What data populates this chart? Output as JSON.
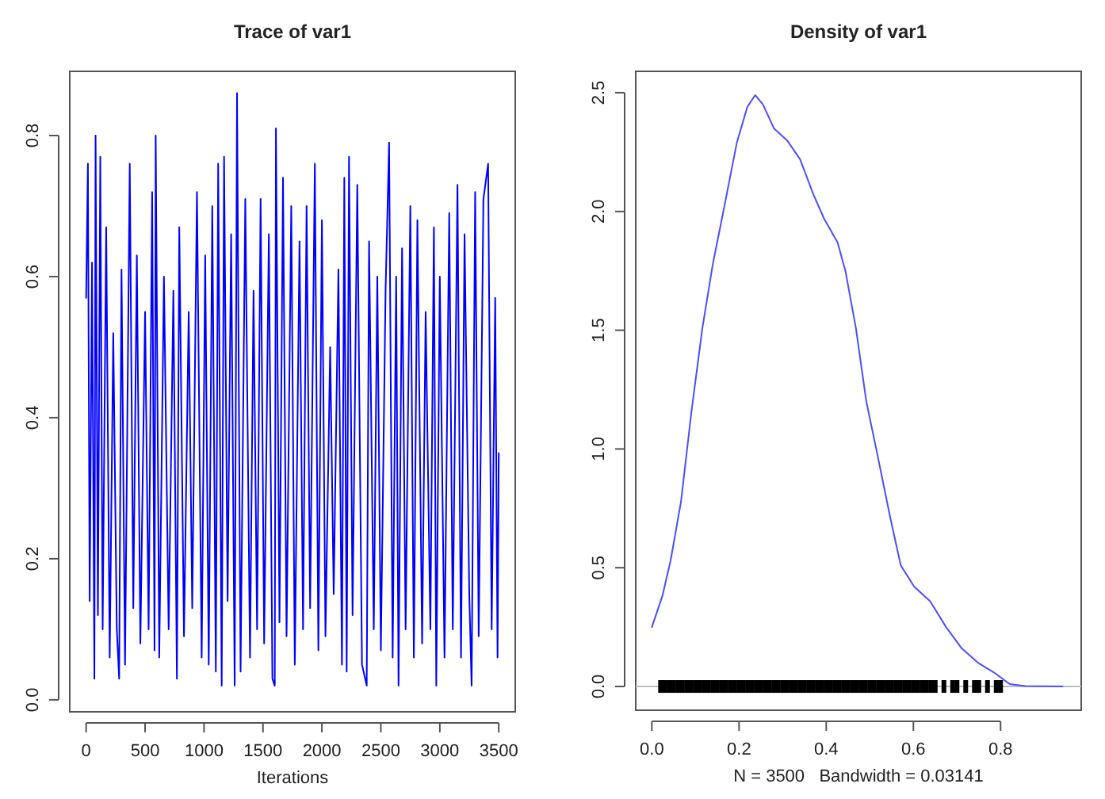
{
  "chart_data": [
    {
      "type": "line",
      "title": "Trace of var1",
      "xlabel": "Iterations",
      "xlim": [
        -139,
        3640
      ],
      "xticks": [
        0,
        500,
        1000,
        1500,
        2000,
        2500,
        3000,
        3500
      ],
      "ylim": [
        -0.017,
        0.891
      ],
      "yticks": [
        {
          "value": 0,
          "label": "0.0"
        },
        0.2,
        0.4,
        0.6,
        0.8
      ],
      "series": [
        {
          "color": "#0000ff",
          "x": [
            0,
            15,
            30,
            50,
            70,
            80,
            100,
            120,
            140,
            170,
            200,
            230,
            260,
            280,
            300,
            330,
            370,
            400,
            430,
            460,
            500,
            530,
            560,
            580,
            590,
            620,
            660,
            700,
            740,
            770,
            790,
            830,
            870,
            900,
            940,
            980,
            1010,
            1040,
            1070,
            1100,
            1120,
            1150,
            1170,
            1200,
            1230,
            1260,
            1280,
            1310,
            1350,
            1390,
            1420,
            1450,
            1480,
            1510,
            1550,
            1580,
            1600,
            1610,
            1640,
            1670,
            1700,
            1740,
            1770,
            1810,
            1840,
            1870,
            1900,
            1940,
            1970,
            2000,
            2030,
            2070,
            2100,
            2140,
            2170,
            2190,
            2210,
            2230,
            2260,
            2300,
            2340,
            2380,
            2400,
            2440,
            2470,
            2500,
            2540,
            2570,
            2600,
            2630,
            2650,
            2680,
            2710,
            2750,
            2780,
            2810,
            2850,
            2880,
            2920,
            2950,
            2970,
            3000,
            3040,
            3080,
            3110,
            3150,
            3180,
            3210,
            3250,
            3270,
            3300,
            3330,
            3370,
            3410,
            3440,
            3470,
            3490,
            3500
          ],
          "values": [
            0.57,
            0.76,
            0.14,
            0.62,
            0.03,
            0.8,
            0.12,
            0.77,
            0.1,
            0.67,
            0.06,
            0.52,
            0.1,
            0.03,
            0.61,
            0.05,
            0.76,
            0.13,
            0.63,
            0.08,
            0.55,
            0.1,
            0.72,
            0.07,
            0.8,
            0.06,
            0.6,
            0.1,
            0.58,
            0.03,
            0.67,
            0.09,
            0.55,
            0.13,
            0.72,
            0.06,
            0.63,
            0.05,
            0.7,
            0.04,
            0.76,
            0.02,
            0.77,
            0.14,
            0.66,
            0.02,
            0.86,
            0.04,
            0.71,
            0.06,
            0.58,
            0.1,
            0.71,
            0.08,
            0.66,
            0.03,
            0.02,
            0.81,
            0.11,
            0.74,
            0.09,
            0.7,
            0.05,
            0.65,
            0.1,
            0.7,
            0.13,
            0.76,
            0.07,
            0.68,
            0.09,
            0.5,
            0.15,
            0.61,
            0.05,
            0.74,
            0.04,
            0.77,
            0.12,
            0.73,
            0.05,
            0.02,
            0.65,
            0.1,
            0.6,
            0.07,
            0.58,
            0.79,
            0.06,
            0.6,
            0.02,
            0.64,
            0.1,
            0.7,
            0.06,
            0.68,
            0.08,
            0.55,
            0.1,
            0.67,
            0.02,
            0.6,
            0.06,
            0.69,
            0.1,
            0.73,
            0.06,
            0.66,
            0.15,
            0.02,
            0.72,
            0.09,
            0.71,
            0.76,
            0.1,
            0.57,
            0.06,
            0.35
          ]
        }
      ]
    },
    {
      "type": "line",
      "title": "Density of var1",
      "xlabel": "N = 3500   Bandwidth = 0.03141",
      "xlim": [
        -0.037,
        0.985
      ],
      "xticks": [
        {
          "value": 0,
          "label": "0.0"
        },
        0.2,
        0.4,
        0.6,
        0.8
      ],
      "ylim": [
        -0.1,
        2.59
      ],
      "yticks": [
        {
          "value": 0,
          "label": "0.0"
        },
        0.5,
        {
          "value": 1,
          "label": "1.0"
        },
        1.5,
        {
          "value": 2,
          "label": "2.0"
        },
        2.5
      ],
      "ref_lines": [
        {
          "axis": "y",
          "value": 0,
          "color": "#bebebe"
        }
      ],
      "series": [
        {
          "type": "line",
          "color": "#4d4dff",
          "x": [
            0,
            0.024,
            0.043,
            0.067,
            0.091,
            0.116,
            0.14,
            0.164,
            0.195,
            0.219,
            0.237,
            0.255,
            0.28,
            0.31,
            0.34,
            0.371,
            0.395,
            0.426,
            0.444,
            0.468,
            0.492,
            0.517,
            0.547,
            0.571,
            0.602,
            0.638,
            0.675,
            0.711,
            0.748,
            0.784,
            0.821,
            0.857,
            0.942
          ],
          "values": [
            0.25,
            0.38,
            0.53,
            0.78,
            1.16,
            1.51,
            1.78,
            2.0,
            2.29,
            2.44,
            2.49,
            2.45,
            2.35,
            2.3,
            2.22,
            2.07,
            1.97,
            1.87,
            1.75,
            1.51,
            1.2,
            0.98,
            0.71,
            0.51,
            0.42,
            0.36,
            0.25,
            0.16,
            0.1,
            0.06,
            0.01,
            0.002,
            0
          ]
        },
        {
          "type": "scatter",
          "color": "#000000",
          "x": [
            0.02,
            0.03,
            0.04,
            0.05,
            0.06,
            0.07,
            0.08,
            0.09,
            0.1,
            0.11,
            0.12,
            0.13,
            0.14,
            0.15,
            0.16,
            0.17,
            0.18,
            0.19,
            0.2,
            0.21,
            0.22,
            0.23,
            0.24,
            0.25,
            0.26,
            0.27,
            0.28,
            0.29,
            0.3,
            0.31,
            0.32,
            0.33,
            0.34,
            0.35,
            0.36,
            0.37,
            0.38,
            0.39,
            0.4,
            0.41,
            0.42,
            0.43,
            0.44,
            0.45,
            0.46,
            0.47,
            0.48,
            0.49,
            0.5,
            0.51,
            0.52,
            0.53,
            0.54,
            0.55,
            0.56,
            0.57,
            0.58,
            0.59,
            0.6,
            0.61,
            0.62,
            0.63,
            0.64,
            0.65,
            0.67,
            0.69,
            0.7,
            0.72,
            0.74,
            0.75,
            0.77,
            0.79,
            0.8
          ],
          "values": [
            0,
            0,
            0,
            0,
            0,
            0,
            0,
            0,
            0,
            0,
            0,
            0,
            0,
            0,
            0,
            0,
            0,
            0,
            0,
            0,
            0,
            0,
            0,
            0,
            0,
            0,
            0,
            0,
            0,
            0,
            0,
            0,
            0,
            0,
            0,
            0,
            0,
            0,
            0,
            0,
            0,
            0,
            0,
            0,
            0,
            0,
            0,
            0,
            0,
            0,
            0,
            0,
            0,
            0,
            0,
            0,
            0,
            0,
            0,
            0,
            0,
            0,
            0,
            0,
            0,
            0,
            0,
            0,
            0,
            0,
            0,
            0,
            0
          ]
        }
      ]
    }
  ]
}
